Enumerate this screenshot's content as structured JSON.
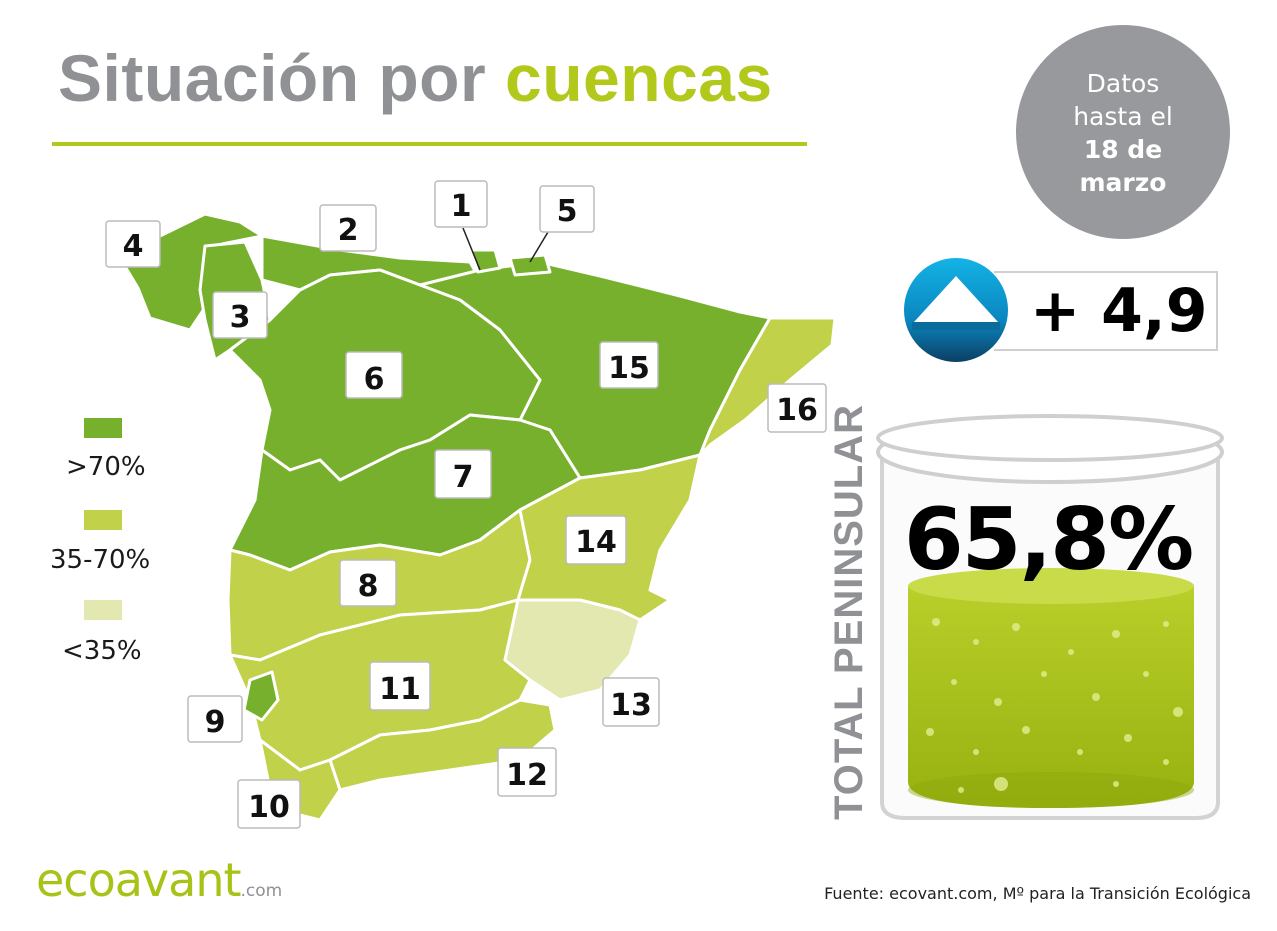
{
  "title": {
    "part1": "Situación por",
    "part2": "cuencas"
  },
  "date_badge": {
    "line1": "Datos",
    "line2": "hasta el",
    "line3": "18 de",
    "line4": "marzo"
  },
  "change": {
    "value": "+ 4,9",
    "direction_icon": "up-arrow-icon"
  },
  "total": {
    "label": "TOTAL PENINSULAR",
    "value": "65,8%",
    "percent": 65.8
  },
  "legend": [
    {
      "label": ">70%",
      "color": "#76b02c"
    },
    {
      "label": "35-70%",
      "color": "#c1d14a"
    },
    {
      "label": "<35%",
      "color": "#e2e8b0"
    }
  ],
  "basins": [
    {
      "number": "1",
      "category": ">70%"
    },
    {
      "number": "2",
      "category": ">70%"
    },
    {
      "number": "3",
      "category": ">70%"
    },
    {
      "number": "4",
      "category": ">70%"
    },
    {
      "number": "5",
      "category": ">70%"
    },
    {
      "number": "6",
      "category": ">70%"
    },
    {
      "number": "7",
      "category": ">70%"
    },
    {
      "number": "8",
      "category": "35-70%"
    },
    {
      "number": "9",
      "category": ">70%"
    },
    {
      "number": "10",
      "category": "35-70%"
    },
    {
      "number": "11",
      "category": "35-70%"
    },
    {
      "number": "12",
      "category": "35-70%"
    },
    {
      "number": "13",
      "category": "<35%"
    },
    {
      "number": "14",
      "category": "35-70%"
    },
    {
      "number": "15",
      "category": ">70%"
    },
    {
      "number": "16",
      "category": "35-70%"
    }
  ],
  "logo": {
    "name": "ecoavant",
    "suffix": ".com"
  },
  "source": "Fuente: ecovant.com, Mº para la Transición Ecológica"
}
